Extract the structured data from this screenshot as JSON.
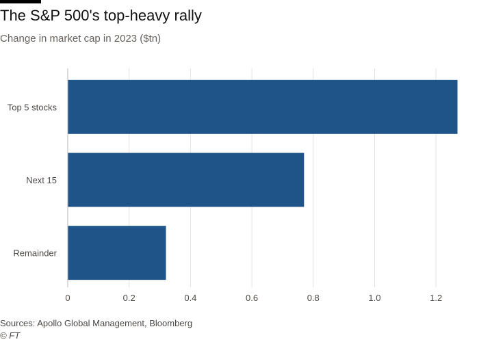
{
  "header": {
    "title": "The S&P 500's top-heavy rally",
    "subtitle": "Change in market cap in 2023 ($tn)"
  },
  "footer": {
    "source": "Sources: Apollo Global Management, Bloomberg",
    "credit": "© FT"
  },
  "chart_data": {
    "type": "bar",
    "orientation": "horizontal",
    "title": "The S&P 500's top-heavy rally",
    "subtitle": "Change in market cap in 2023 ($tn)",
    "categories": [
      "Top 5 stocks",
      "Next 15",
      "Remainder"
    ],
    "values": [
      1.27,
      0.77,
      0.32
    ],
    "xlim": [
      0,
      1.3
    ],
    "xticks": [
      "0",
      "0.2",
      "0.4",
      "0.6",
      "0.8",
      "1.0",
      "1.2"
    ],
    "xlabel": "",
    "ylabel": "",
    "grid": "vertical",
    "bar_color": "#1f5489",
    "grid_color": "#e6e2df",
    "axis_color": "#bdb8b4"
  }
}
